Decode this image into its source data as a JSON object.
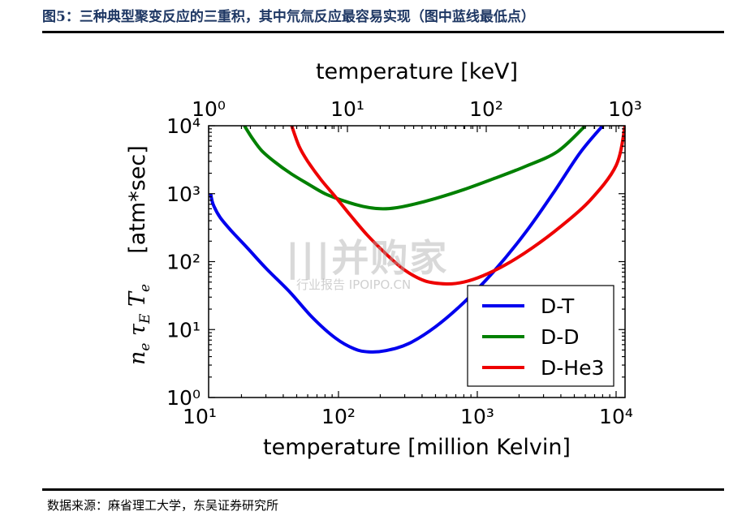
{
  "figure_title": "图5：三种典型聚变反应的三重积，其中氘氚反应最容易实现（图中蓝线最低点）",
  "source": "数据来源：麻省理工大学，东吴证券研究所",
  "watermark": {
    "main": "|||并购家",
    "sub": "行业报告 IPOIPO.CN"
  },
  "chart_data": {
    "type": "line",
    "xlabel_bottom": "temperature  [million Kelvin]",
    "xlabel_top": "temperature  [keV]",
    "ylabel": "[atm*sec]",
    "y_scale": "log",
    "x_scale": "log",
    "xlim": [
      11.6,
      11600
    ],
    "ylim": [
      1,
      10000
    ],
    "xlim_top_keV": [
      1,
      1000
    ],
    "x_ticks_bottom": [
      "10¹",
      "10²",
      "10³",
      "10⁴"
    ],
    "x_ticks_bottom_values": [
      10,
      100,
      1000,
      10000
    ],
    "x_ticks_top": [
      "10⁰",
      "10¹",
      "10²",
      "10³"
    ],
    "x_ticks_top_values_keV": [
      1,
      10,
      100,
      1000
    ],
    "y_ticks": [
      "10⁰",
      "10¹",
      "10²",
      "10³",
      "10⁴"
    ],
    "y_ticks_values": [
      1,
      10,
      100,
      1000,
      10000
    ],
    "legend_position": "lower-right",
    "grid": false,
    "series": [
      {
        "name": "D-T",
        "color": "#0000ee",
        "x": [
          12,
          12.5,
          14,
          17,
          22,
          30,
          45,
          65,
          95,
          130,
          165,
          220,
          320,
          500,
          800,
          1300,
          2200,
          3500,
          5500,
          8000
        ],
        "y": [
          1000,
          700,
          450,
          280,
          160,
          80,
          35,
          15,
          7.5,
          5.2,
          4.7,
          4.9,
          6.2,
          11,
          25,
          70,
          260,
          1000,
          4000,
          10000
        ]
      },
      {
        "name": "D-D",
        "color": "#008000",
        "x": [
          21,
          24,
          28,
          35,
          45,
          60,
          80,
          110,
          150,
          200,
          260,
          350,
          500,
          800,
          1300,
          2200,
          3800,
          6000
        ],
        "y": [
          10000,
          6500,
          4300,
          2900,
          2000,
          1400,
          1000,
          780,
          650,
          600,
          620,
          700,
          850,
          1150,
          1650,
          2500,
          4200,
          10000
        ]
      },
      {
        "name": "D-He3",
        "color": "#ee0000",
        "x": [
          46,
          52,
          60,
          75,
          95,
          120,
          160,
          220,
          300,
          420,
          600,
          800,
          1100,
          1600,
          2500,
          4000,
          6500,
          10000,
          11600
        ],
        "y": [
          10000,
          5000,
          3000,
          1600,
          900,
          500,
          250,
          130,
          75,
          52,
          47,
          50,
          62,
          90,
          160,
          330,
          800,
          2600,
          10000
        ]
      }
    ]
  }
}
